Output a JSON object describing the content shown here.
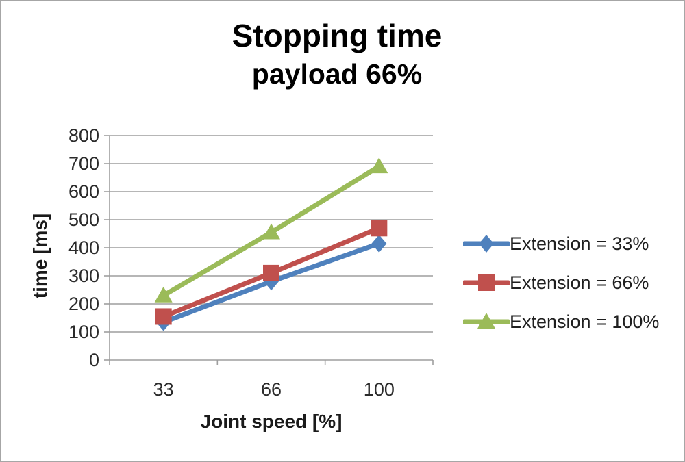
{
  "chart_data": {
    "type": "line",
    "title": "Stopping time",
    "subtitle": "payload 66%",
    "xlabel": "Joint speed [%]",
    "ylabel": "time [ms]",
    "categories": [
      "33",
      "66",
      "100"
    ],
    "series": [
      {
        "name": "Extension = 33%",
        "marker": "diamond",
        "color": "#4F81BD",
        "values": [
          135,
          280,
          415
        ]
      },
      {
        "name": "Extension = 66%",
        "marker": "square",
        "color": "#C0504D",
        "values": [
          155,
          310,
          470
        ]
      },
      {
        "name": "Extension = 100%",
        "marker": "triangle",
        "color": "#9BBB59",
        "values": [
          230,
          455,
          690
        ]
      }
    ],
    "ylim": [
      0,
      800
    ],
    "ytick_step": 100,
    "grid": "horizontal",
    "legend_position": "right",
    "axis_color": "#9e9e9e",
    "tick_label_color": "#2b2b2b"
  }
}
